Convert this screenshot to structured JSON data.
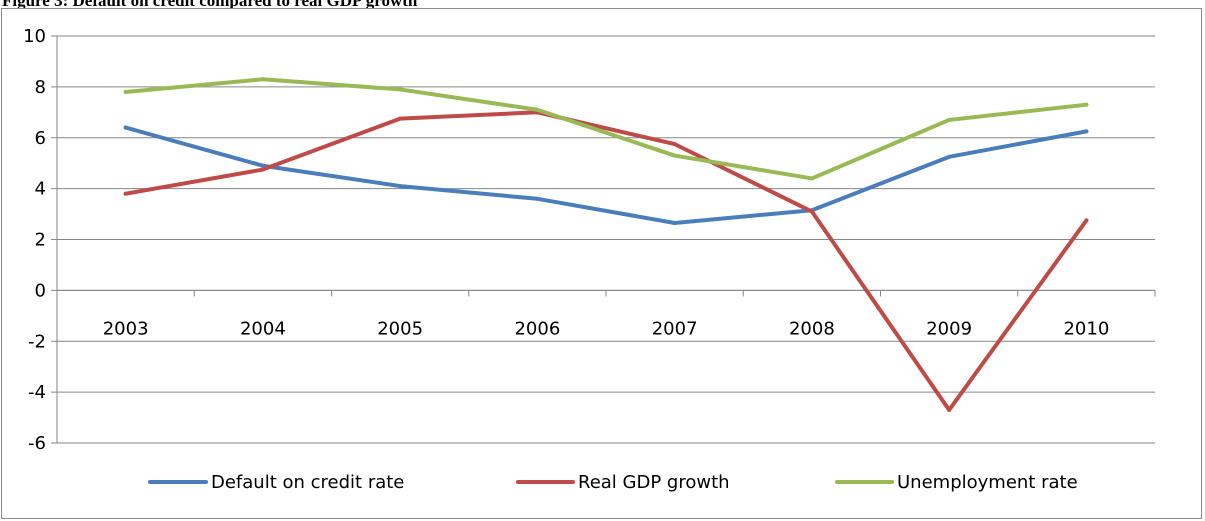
{
  "figure": {
    "title": "Figure 3: Default on credit compared to real GDP growth"
  },
  "chart_data": {
    "type": "line",
    "title": "",
    "xlabel": "",
    "ylabel": "",
    "categories": [
      "2003",
      "2004",
      "2005",
      "2006",
      "2007",
      "2008",
      "2009",
      "2010"
    ],
    "ylim": [
      -6,
      10
    ],
    "yticks": [
      -6,
      -4,
      -2,
      0,
      2,
      4,
      6,
      8,
      10
    ],
    "grid": "horizontal",
    "legend": "bottom",
    "series": [
      {
        "name": "Default on credit rate",
        "color": "#4a7ebb",
        "values": [
          6.4,
          4.9,
          4.1,
          3.6,
          2.65,
          3.15,
          5.25,
          6.25
        ]
      },
      {
        "name": "Real GDP growth",
        "color": "#be4b48",
        "values": [
          3.8,
          4.75,
          6.75,
          7.0,
          5.75,
          3.1,
          -4.7,
          2.75
        ]
      },
      {
        "name": "Unemployment rate",
        "color": "#98b954",
        "values": [
          7.8,
          8.3,
          7.9,
          7.1,
          5.3,
          4.4,
          6.7,
          7.3
        ]
      }
    ]
  }
}
